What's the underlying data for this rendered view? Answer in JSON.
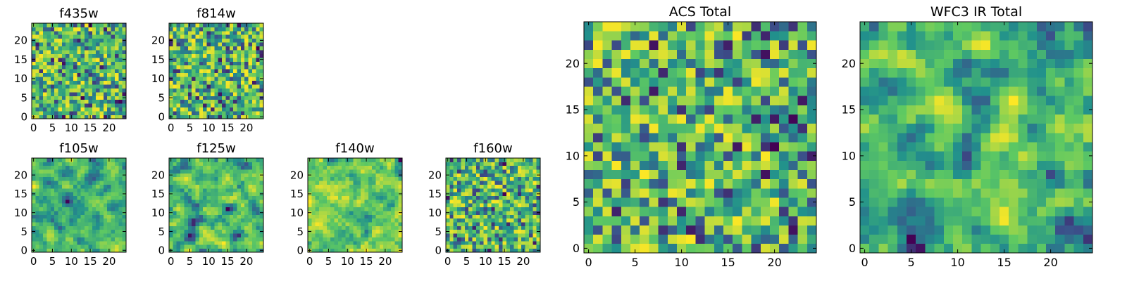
{
  "colormap": {
    "name": "viridis",
    "stops": [
      "#440154",
      "#3b528b",
      "#21918c",
      "#5ec962",
      "#fde725"
    ]
  },
  "chart_data": [
    {
      "type": "heatmap",
      "title": "f435w",
      "grid": [
        25,
        25
      ],
      "xticks": [
        0,
        5,
        10,
        15,
        20
      ],
      "yticks": [
        0,
        5,
        10,
        15,
        20
      ],
      "xlim": [
        -0.5,
        24.5
      ],
      "ylim": [
        -0.5,
        24.5
      ],
      "value_range": [
        0,
        1
      ],
      "seed": 11,
      "smooth": 0
    },
    {
      "type": "heatmap",
      "title": "f814w",
      "grid": [
        25,
        25
      ],
      "xticks": [
        0,
        5,
        10,
        15,
        20
      ],
      "yticks": [
        0,
        5,
        10,
        15,
        20
      ],
      "xlim": [
        -0.5,
        24.5
      ],
      "ylim": [
        -0.5,
        24.5
      ],
      "value_range": [
        0,
        1
      ],
      "seed": 23,
      "smooth": 0
    },
    {
      "type": "heatmap",
      "title": "f105w",
      "grid": [
        25,
        25
      ],
      "xticks": [
        0,
        5,
        10,
        15,
        20
      ],
      "yticks": [
        0,
        5,
        10,
        15,
        20
      ],
      "xlim": [
        -0.5,
        24.5
      ],
      "ylim": [
        -0.5,
        24.5
      ],
      "value_range": [
        0,
        1
      ],
      "seed": 37,
      "smooth": 1
    },
    {
      "type": "heatmap",
      "title": "f125w",
      "grid": [
        25,
        25
      ],
      "xticks": [
        0,
        5,
        10,
        15,
        20
      ],
      "yticks": [
        0,
        5,
        10,
        15,
        20
      ],
      "xlim": [
        -0.5,
        24.5
      ],
      "ylim": [
        -0.5,
        24.5
      ],
      "value_range": [
        0,
        1
      ],
      "seed": 41,
      "smooth": 1
    },
    {
      "type": "heatmap",
      "title": "f140w",
      "grid": [
        25,
        25
      ],
      "xticks": [
        0,
        5,
        10,
        15,
        20
      ],
      "yticks": [
        0,
        5,
        10,
        15,
        20
      ],
      "xlim": [
        -0.5,
        24.5
      ],
      "ylim": [
        -0.5,
        24.5
      ],
      "value_range": [
        0,
        1
      ],
      "seed": 53,
      "smooth": 1
    },
    {
      "type": "heatmap",
      "title": "f160w",
      "grid": [
        25,
        25
      ],
      "xticks": [
        0,
        5,
        10,
        15,
        20
      ],
      "yticks": [
        0,
        5,
        10,
        15,
        20
      ],
      "xlim": [
        -0.5,
        24.5
      ],
      "ylim": [
        -0.5,
        24.5
      ],
      "value_range": [
        0,
        1
      ],
      "seed": 67,
      "smooth": 0
    },
    {
      "type": "heatmap",
      "title": "ACS Total",
      "grid": [
        25,
        25
      ],
      "xticks": [
        0,
        5,
        10,
        15,
        20
      ],
      "yticks": [
        0,
        5,
        10,
        15,
        20
      ],
      "xlim": [
        -0.5,
        24.5
      ],
      "ylim": [
        -0.5,
        24.5
      ],
      "value_range": [
        0,
        1
      ],
      "seed": 79,
      "smooth": 0
    },
    {
      "type": "heatmap",
      "title": "WFC3 IR Total",
      "grid": [
        25,
        25
      ],
      "xticks": [
        0,
        5,
        10,
        15,
        20
      ],
      "yticks": [
        0,
        5,
        10,
        15,
        20
      ],
      "xlim": [
        -0.5,
        24.5
      ],
      "ylim": [
        -0.5,
        24.5
      ],
      "value_range": [
        0,
        1
      ],
      "seed": 97,
      "smooth": 1
    }
  ]
}
